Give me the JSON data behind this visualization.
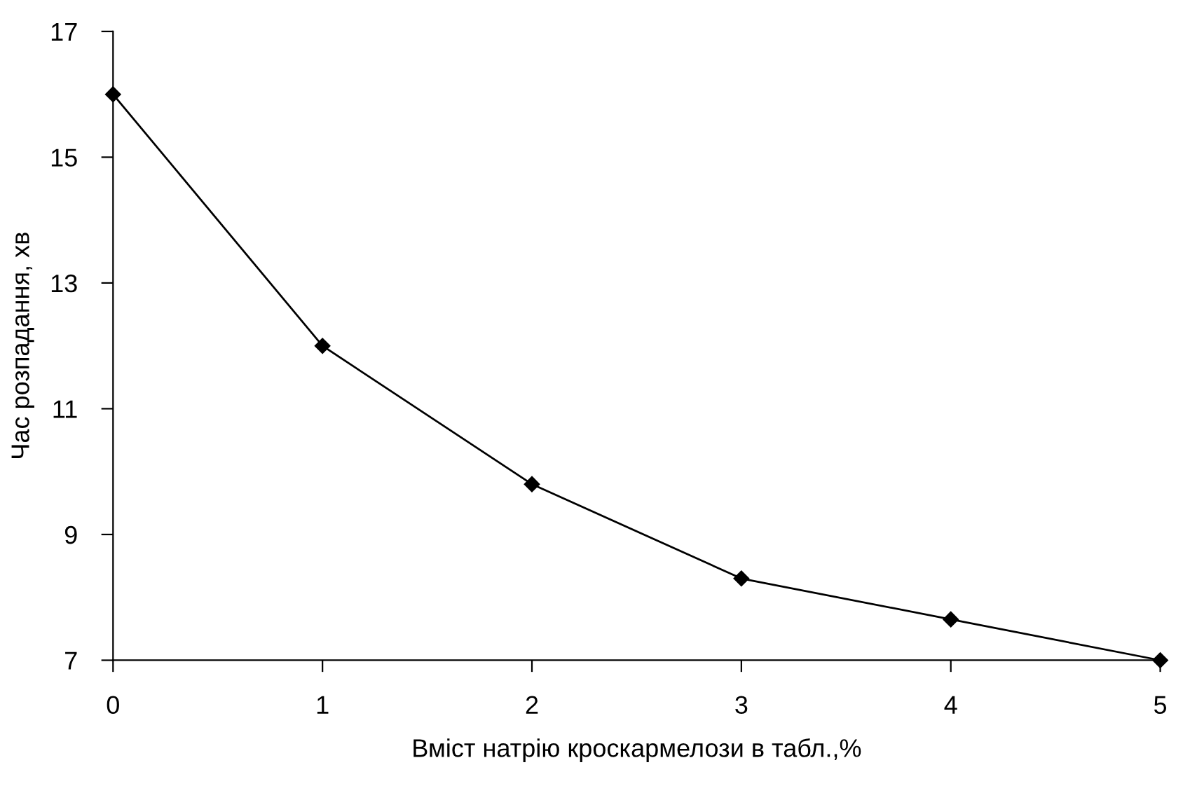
{
  "chart_data": {
    "type": "line",
    "xlabel": "Вміст натрію кроскармелози в табл.,%",
    "ylabel": "Час розпадання, хв",
    "x": [
      0,
      1,
      2,
      3,
      4,
      5
    ],
    "series": [
      {
        "color": "#000000",
        "values": [
          16,
          12,
          9.8,
          8.3,
          7.65,
          7.0
        ]
      }
    ],
    "xlim": [
      0,
      5
    ],
    "xticks": [
      0,
      1,
      2,
      3,
      4,
      5
    ],
    "ylim": [
      7,
      17
    ],
    "yticks": [
      7,
      9,
      11,
      13,
      15,
      17
    ],
    "marker": "diamond",
    "line_style": "solid",
    "grid": false
  }
}
